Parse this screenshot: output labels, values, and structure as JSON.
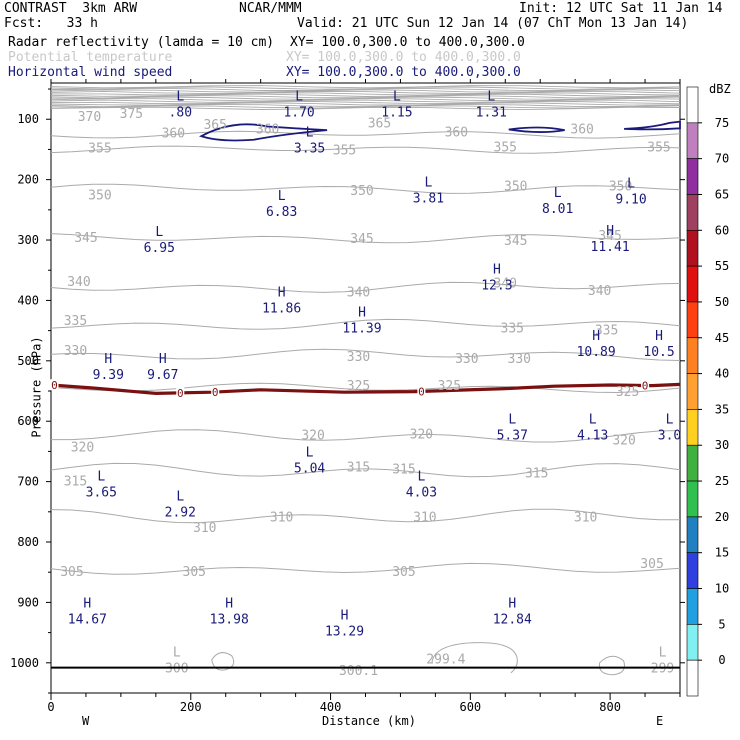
{
  "header": {
    "line1_left": "CONTRAST  3km ARW",
    "line1_mid": "NCAR/MMM",
    "line1_right": "Init: 12 UTC Sat 11 Jan 14",
    "line2_left": "Fcst:   33 h",
    "line2_right": "Valid: 21 UTC Sun 12 Jan 14 (07 ChT Mon 13 Jan 14)",
    "field1_name": "Radar reflectivity (lamda = 10 cm)",
    "field1_xy": "XY= 100.0,300.0 to 400.0,300.0",
    "field2_name": "Potential temperature",
    "field2_xy": "XY= 100.0,300.0 to 400.0,300.0",
    "field3_name": "Horizontal wind speed",
    "field3_xy": "XY= 100.0,300.0 to 400.0,300.0",
    "west_label": "W",
    "east_label": "E"
  },
  "colors": {
    "wind": "#1a1a7a",
    "theta": "#aaaaaa",
    "zero_contour": "#7a1010"
  },
  "chart_data": {
    "type": "contour",
    "xlabel": "Distance (km)",
    "ylabel": "Pressure (hPa)",
    "xlim": [
      0,
      900
    ],
    "ylim": [
      1050,
      40
    ],
    "x_ticks": [
      0,
      200,
      400,
      600,
      800
    ],
    "y_ticks": [
      100,
      200,
      300,
      400,
      500,
      600,
      700,
      800,
      900,
      1000
    ],
    "colorbar": {
      "unit": "dBZ",
      "levels": [
        75,
        70,
        65,
        60,
        55,
        50,
        45,
        40,
        35,
        30,
        25,
        20,
        15,
        10,
        5,
        0
      ],
      "colors": [
        "#ffffff",
        "#c080c0",
        "#9030a0",
        "#a04060",
        "#b01020",
        "#e01010",
        "#ff4010",
        "#ff8020",
        "#ffa030",
        "#ffd020",
        "#40b040",
        "#30c050",
        "#2080c0",
        "#3040e0",
        "#20a0e0",
        "#80f0f0",
        "#ffffff"
      ]
    },
    "theta_labels": [
      {
        "x": 55,
        "p": 95,
        "v": "370"
      },
      {
        "x": 115,
        "p": 90,
        "v": "375"
      },
      {
        "x": 175,
        "p": 122,
        "v": "360"
      },
      {
        "x": 235,
        "p": 108,
        "v": "365"
      },
      {
        "x": 310,
        "p": 115,
        "v": "360"
      },
      {
        "x": 470,
        "p": 105,
        "v": "365"
      },
      {
        "x": 580,
        "p": 120,
        "v": "360"
      },
      {
        "x": 760,
        "p": 115,
        "v": "360"
      },
      {
        "x": 70,
        "p": 147,
        "v": "355"
      },
      {
        "x": 420,
        "p": 150,
        "v": "355"
      },
      {
        "x": 650,
        "p": 145,
        "v": "355"
      },
      {
        "x": 870,
        "p": 145,
        "v": "355"
      },
      {
        "x": 70,
        "p": 225,
        "v": "350"
      },
      {
        "x": 445,
        "p": 217,
        "v": "350"
      },
      {
        "x": 665,
        "p": 210,
        "v": "350"
      },
      {
        "x": 815,
        "p": 210,
        "v": "350"
      },
      {
        "x": 50,
        "p": 295,
        "v": "345"
      },
      {
        "x": 445,
        "p": 297,
        "v": "345"
      },
      {
        "x": 665,
        "p": 300,
        "v": "345"
      },
      {
        "x": 800,
        "p": 292,
        "v": "345"
      },
      {
        "x": 40,
        "p": 368,
        "v": "340"
      },
      {
        "x": 440,
        "p": 385,
        "v": "340"
      },
      {
        "x": 650,
        "p": 370,
        "v": "340"
      },
      {
        "x": 785,
        "p": 383,
        "v": "340"
      },
      {
        "x": 35,
        "p": 432,
        "v": "335"
      },
      {
        "x": 660,
        "p": 445,
        "v": "335"
      },
      {
        "x": 795,
        "p": 448,
        "v": "335"
      },
      {
        "x": 35,
        "p": 482,
        "v": "330"
      },
      {
        "x": 440,
        "p": 492,
        "v": "330"
      },
      {
        "x": 595,
        "p": 495,
        "v": "330"
      },
      {
        "x": 670,
        "p": 495,
        "v": "330"
      },
      {
        "x": 440,
        "p": 540,
        "v": "325"
      },
      {
        "x": 570,
        "p": 540,
        "v": "325"
      },
      {
        "x": 825,
        "p": 550,
        "v": "325"
      },
      {
        "x": 45,
        "p": 642,
        "v": "320"
      },
      {
        "x": 375,
        "p": 622,
        "v": "320"
      },
      {
        "x": 530,
        "p": 620,
        "v": "320"
      },
      {
        "x": 820,
        "p": 630,
        "v": "320"
      },
      {
        "x": 440,
        "p": 675,
        "v": "315"
      },
      {
        "x": 505,
        "p": 678,
        "v": "315"
      },
      {
        "x": 35,
        "p": 698,
        "v": "315"
      },
      {
        "x": 695,
        "p": 685,
        "v": "315"
      },
      {
        "x": 330,
        "p": 758,
        "v": "310"
      },
      {
        "x": 220,
        "p": 775,
        "v": "310"
      },
      {
        "x": 535,
        "p": 758,
        "v": "310"
      },
      {
        "x": 765,
        "p": 758,
        "v": "310"
      },
      {
        "x": 30,
        "p": 848,
        "v": "305"
      },
      {
        "x": 205,
        "p": 848,
        "v": "305"
      },
      {
        "x": 505,
        "p": 848,
        "v": "305"
      },
      {
        "x": 860,
        "p": 835,
        "v": "305"
      }
    ],
    "wind_extrema": [
      {
        "type": "L",
        "x": 185,
        "p": 76,
        "v": ".80"
      },
      {
        "type": "L",
        "x": 355,
        "p": 76,
        "v": "1.70"
      },
      {
        "type": "L",
        "x": 495,
        "p": 76,
        "v": "1.15"
      },
      {
        "type": "L",
        "x": 630,
        "p": 76,
        "v": "1.31"
      },
      {
        "type": "L",
        "x": 370,
        "p": 135,
        "v": "3.35"
      },
      {
        "type": "L",
        "x": 540,
        "p": 218,
        "v": "3.81"
      },
      {
        "type": "L",
        "x": 330,
        "p": 240,
        "v": "6.83"
      },
      {
        "type": "L",
        "x": 725,
        "p": 235,
        "v": "8.01"
      },
      {
        "type": "L",
        "x": 830,
        "p": 220,
        "v": "9.10"
      },
      {
        "type": "L",
        "x": 155,
        "p": 300,
        "v": "6.95"
      },
      {
        "type": "H",
        "x": 800,
        "p": 298,
        "v": "11.41"
      },
      {
        "type": "H",
        "x": 638,
        "p": 362,
        "v": "12.3"
      },
      {
        "type": "H",
        "x": 330,
        "p": 400,
        "v": "11.86"
      },
      {
        "type": "H",
        "x": 445,
        "p": 433,
        "v": "11.39"
      },
      {
        "type": "H",
        "x": 780,
        "p": 472,
        "v": "10.89"
      },
      {
        "type": "H",
        "x": 870,
        "p": 472,
        "v": "10.5"
      },
      {
        "type": "H",
        "x": 82,
        "p": 510,
        "v": "9.39"
      },
      {
        "type": "H",
        "x": 160,
        "p": 510,
        "v": "9.67"
      },
      {
        "type": "L",
        "x": 660,
        "p": 610,
        "v": "5.37"
      },
      {
        "type": "L",
        "x": 775,
        "p": 610,
        "v": "4.13"
      },
      {
        "type": "L",
        "x": 885,
        "p": 610,
        "v": "3.0"
      },
      {
        "type": "L",
        "x": 370,
        "p": 665,
        "v": "5.04"
      },
      {
        "type": "L",
        "x": 72,
        "p": 705,
        "v": "3.65"
      },
      {
        "type": "L",
        "x": 530,
        "p": 705,
        "v": "4.03"
      },
      {
        "type": "L",
        "x": 185,
        "p": 738,
        "v": "2.92"
      },
      {
        "type": "H",
        "x": 52,
        "p": 915,
        "v": "14.67"
      },
      {
        "type": "H",
        "x": 255,
        "p": 915,
        "v": "13.98"
      },
      {
        "type": "H",
        "x": 420,
        "p": 935,
        "v": "13.29"
      },
      {
        "type": "H",
        "x": 660,
        "p": 915,
        "v": "12.84"
      }
    ],
    "surface_theta": [
      {
        "type": "L",
        "x": 180,
        "p": 1003,
        "v": "300"
      },
      {
        "type": "",
        "x": 440,
        "p": 1007,
        "v": "300.1"
      },
      {
        "type": "",
        "x": 565,
        "p": 988,
        "v": "299.4"
      },
      {
        "type": "L",
        "x": 875,
        "p": 1003,
        "v": "299"
      }
    ],
    "zero_dbz_contour": {
      "x": [
        0,
        60,
        150,
        230,
        300,
        420,
        520,
        650,
        720,
        800,
        860,
        900
      ],
      "p": [
        540,
        545,
        554,
        552,
        548,
        552,
        551,
        546,
        542,
        540,
        541,
        539
      ],
      "label": "0"
    }
  }
}
